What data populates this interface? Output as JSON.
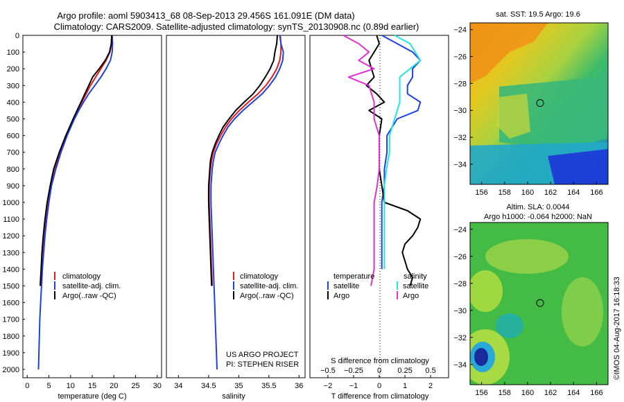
{
  "header": {
    "title_line1": "Argo profile: aoml 5903413_68 08-Sep-2013 29.456S 161.091E (DM data)",
    "title_line2": "Climatology: CARS2009. Satellite-adjusted climatology: synTS_20130908.nc (0.89d earlier)"
  },
  "side_note": "©IMOS 04-Aug-2017 16:18:33",
  "colors": {
    "climatology": "#e8191a",
    "satellite": "#1f3fe6",
    "argo": "#000000",
    "satellite_salinity": "#22e4e4",
    "argo_salinity": "#e12fd5"
  },
  "chart_data": [
    {
      "type": "line",
      "panel": "temperature",
      "xlabel": "temperature (deg C)",
      "ylim": [
        2050,
        0
      ],
      "xlim": [
        -1,
        31
      ],
      "y_ticks": [
        0,
        100,
        200,
        300,
        400,
        500,
        600,
        700,
        800,
        900,
        1000,
        1100,
        1200,
        1300,
        1400,
        1500,
        1600,
        1700,
        1800,
        1900,
        2000
      ],
      "x_ticks": [
        0,
        5,
        10,
        15,
        20,
        25,
        30
      ],
      "legend": [
        "climatology",
        "satellite-adj. clim.",
        "Argo(..raw -QC)"
      ],
      "series": [
        {
          "name": "climatology",
          "role": "climatology",
          "y": [
            0,
            50,
            100,
            150,
            200,
            250,
            300,
            350,
            400,
            450,
            500,
            600,
            700,
            800,
            900,
            1000,
            1100,
            1200,
            1300,
            1400,
            1500
          ],
          "x": [
            19.6,
            19.5,
            19.1,
            18.2,
            17.0,
            15.8,
            14.6,
            13.6,
            12.6,
            11.6,
            10.7,
            9.1,
            7.6,
            6.4,
            5.5,
            4.9,
            4.4,
            4.0,
            3.7,
            3.5,
            3.3
          ]
        },
        {
          "name": "satellite-adj. clim.",
          "role": "satellite",
          "y": [
            0,
            50,
            100,
            150,
            200,
            250,
            300,
            350,
            400,
            450,
            500,
            600,
            700,
            800,
            900,
            1000,
            1100,
            1200,
            1300,
            1400,
            1500,
            1600,
            1700,
            1800,
            1900,
            2000
          ],
          "x": [
            19.6,
            19.7,
            19.6,
            19.2,
            18.2,
            17.0,
            15.6,
            14.2,
            13.0,
            11.9,
            10.9,
            9.2,
            7.8,
            6.6,
            5.6,
            5.0,
            4.5,
            4.1,
            3.8,
            3.5,
            3.3,
            3.1,
            2.9,
            2.8,
            2.7,
            2.6
          ]
        },
        {
          "name": "Argo(..raw -QC)",
          "role": "argo",
          "y": [
            0,
            50,
            100,
            150,
            200,
            250,
            300,
            350,
            400,
            450,
            500,
            600,
            700,
            800,
            900,
            1000,
            1100,
            1200,
            1300,
            1400,
            1500
          ],
          "x": [
            19.5,
            19.4,
            19.0,
            18.0,
            16.6,
            15.1,
            14.2,
            13.3,
            12.4,
            11.5,
            10.6,
            8.9,
            7.4,
            6.1,
            5.3,
            4.6,
            4.1,
            3.7,
            3.4,
            3.2,
            3.0
          ]
        }
      ]
    },
    {
      "type": "line",
      "panel": "salinity",
      "xlabel": "salinity",
      "ylim": [
        2050,
        0
      ],
      "xlim": [
        33.8,
        36.1
      ],
      "x_ticks": [
        34,
        34.5,
        35,
        35.5,
        36
      ],
      "legend": [
        "climatology",
        "satellite-adj. clim.",
        "Argo(..raw -QC)"
      ],
      "annotation_line1": "US ARGO PROJECT",
      "annotation_line2": "PI: STEPHEN RISER",
      "series": [
        {
          "name": "climatology",
          "role": "climatology",
          "y": [
            0,
            50,
            100,
            150,
            200,
            250,
            300,
            350,
            400,
            450,
            500,
            550,
            600,
            650,
            700,
            750,
            800,
            900,
            1000,
            1100,
            1200,
            1300,
            1400,
            1500
          ],
          "x": [
            35.69,
            35.7,
            35.7,
            35.68,
            35.63,
            35.55,
            35.45,
            35.32,
            35.16,
            35.01,
            34.88,
            34.78,
            34.7,
            34.63,
            34.58,
            34.55,
            34.53,
            34.51,
            34.51,
            34.52,
            34.53,
            34.54,
            34.55,
            34.56
          ]
        },
        {
          "name": "satellite-adj. clim.",
          "role": "satellite",
          "y": [
            0,
            50,
            100,
            150,
            200,
            250,
            300,
            350,
            400,
            450,
            500,
            550,
            600,
            650,
            700,
            750,
            800,
            900,
            1000,
            1100,
            1200,
            1300,
            1400,
            1500,
            1600,
            1700,
            1800,
            1900,
            2000
          ],
          "x": [
            35.68,
            35.7,
            35.74,
            35.73,
            35.68,
            35.61,
            35.51,
            35.39,
            35.23,
            35.07,
            34.93,
            34.82,
            34.74,
            34.67,
            34.61,
            34.58,
            34.56,
            34.54,
            34.54,
            34.55,
            34.56,
            34.57,
            34.58,
            34.59,
            34.6,
            34.61,
            34.62,
            34.63,
            34.64
          ]
        },
        {
          "name": "Argo(..raw -QC)",
          "role": "argo",
          "y": [
            0,
            50,
            100,
            150,
            200,
            250,
            300,
            350,
            400,
            450,
            500,
            550,
            600,
            650,
            700,
            750,
            800,
            900,
            1000,
            1100,
            1200,
            1300,
            1400,
            1500
          ],
          "x": [
            35.64,
            35.63,
            35.6,
            35.58,
            35.52,
            35.44,
            35.35,
            35.24,
            35.09,
            34.95,
            34.84,
            34.74,
            34.67,
            34.61,
            34.56,
            34.53,
            34.52,
            34.5,
            34.5,
            34.51,
            34.52,
            34.53,
            34.54,
            34.55
          ]
        }
      ]
    },
    {
      "type": "line",
      "panel": "differences",
      "xlabel_top": "S difference from climatology",
      "xlabel": "T difference from climatology",
      "ylim": [
        2050,
        0
      ],
      "xlim": [
        -2.7,
        2.7
      ],
      "x_ticks": [
        -2,
        -1,
        0,
        1,
        2
      ],
      "s_ticks": [
        -0.5,
        -0.25,
        0,
        0.25,
        0.5
      ],
      "legend_temperature_header": "temperature",
      "legend_salinity_header": "salinity",
      "legend_satellite": "satellite",
      "legend_argo": "Argo",
      "series": [
        {
          "name": "satellite",
          "quantity": "temperature",
          "role": "satellite",
          "y": [
            0,
            50,
            100,
            150,
            200,
            250,
            300,
            350,
            400,
            450,
            500,
            600,
            700,
            800,
            900,
            1000,
            1100,
            1200,
            1300,
            1400
          ],
          "x": [
            0.1,
            0.7,
            1.3,
            1.6,
            1.3,
            1.3,
            1.1,
            1.1,
            1.6,
            1.5,
            0.7,
            0.3,
            0.3,
            0.2,
            0.2,
            0.1,
            0.1,
            0.1,
            0.1,
            0.1
          ]
        },
        {
          "name": "Argo",
          "quantity": "temperature",
          "role": "argo",
          "y": [
            0,
            50,
            100,
            150,
            200,
            250,
            300,
            350,
            400,
            450,
            500,
            600,
            700,
            800,
            900,
            1000,
            1050,
            1100,
            1150,
            1200,
            1250,
            1300,
            1350,
            1400,
            1450,
            1500
          ],
          "x": [
            -0.1,
            0.0,
            -0.2,
            -0.4,
            -0.3,
            -0.2,
            -0.5,
            -0.1,
            0.2,
            -0.4,
            0.1,
            0.0,
            0.0,
            0.0,
            0.1,
            0.2,
            1.1,
            1.6,
            1.5,
            1.3,
            1.0,
            0.9,
            1.0,
            1.1,
            1.3,
            1.2
          ]
        },
        {
          "name": "satellite",
          "quantity": "salinity",
          "role": "satellite_salinity",
          "y": [
            0,
            50,
            100,
            150,
            200,
            250,
            300,
            400,
            500,
            600,
            700,
            800,
            900,
            1000,
            1100,
            1200,
            1300,
            1400
          ],
          "x": [
            0.15,
            0.3,
            0.35,
            0.4,
            0.3,
            0.2,
            0.2,
            0.2,
            0.15,
            0.1,
            0.1,
            0.07,
            0.05,
            0.05,
            0.05,
            0.05,
            0.05,
            0.05
          ]
        },
        {
          "name": "Argo",
          "quantity": "salinity",
          "role": "argo_salinity",
          "y": [
            0,
            50,
            100,
            150,
            200,
            250,
            300,
            400,
            500,
            600,
            700,
            800,
            900,
            1000,
            1100,
            1200,
            1300,
            1400,
            1500
          ],
          "x": [
            -0.35,
            -0.2,
            -0.1,
            -0.2,
            -0.05,
            -0.3,
            -0.1,
            -0.05,
            -0.05,
            0.0,
            0.0,
            0.0,
            -0.02,
            -0.05,
            -0.05,
            -0.05,
            -0.05,
            -0.05,
            -0.08
          ]
        }
      ]
    },
    {
      "type": "heatmap",
      "panel": "sst_map",
      "title": "sat. SST: 19.5 Argo: 19.6",
      "xlim": [
        155,
        167
      ],
      "ylim": [
        -35.5,
        -23.5
      ],
      "x_ticks": [
        156,
        158,
        160,
        162,
        164,
        166
      ],
      "y_ticks": [
        -24,
        -26,
        -28,
        -30,
        -32,
        -34
      ],
      "argo_position": [
        161.091,
        -29.456
      ]
    },
    {
      "type": "heatmap",
      "panel": "sla_map",
      "title_line1": "Altim. SLA: 0.0044",
      "title_line2": "Argo h1000: -0.064 h2000: NaN",
      "xlim": [
        155,
        167
      ],
      "ylim": [
        -35.5,
        -23.5
      ],
      "x_ticks": [
        156,
        158,
        160,
        162,
        164,
        166
      ],
      "y_ticks": [
        -24,
        -26,
        -28,
        -30,
        -32,
        -34
      ],
      "argo_position": [
        161.091,
        -29.456
      ]
    }
  ]
}
